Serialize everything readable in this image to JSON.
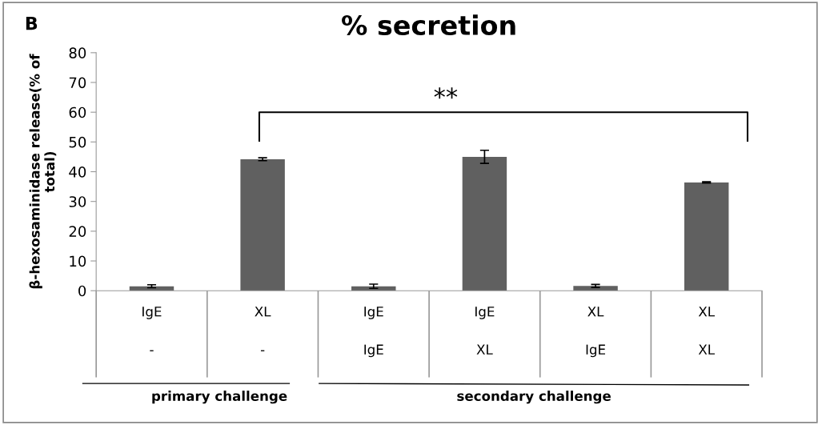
{
  "chart_data": {
    "type": "bar",
    "title": "% secretion",
    "ylabel": "β-hexosaminidase release(% of\ntotal)",
    "categories": [
      "IgE\n\n-",
      "XL\n\n-",
      "IgE\n\nIgE",
      "IgE\n\nXL",
      "XL\n\nIgE",
      "XL\n\nXL"
    ],
    "values": [
      1.5,
      44.2,
      1.5,
      45.0,
      1.6,
      36.4
    ],
    "errors": [
      0.5,
      0.5,
      0.7,
      2.2,
      0.5,
      0.2
    ],
    "color": "#606060",
    "ylim": [
      0,
      80
    ],
    "yticks": [
      0,
      10,
      20,
      30,
      40,
      50,
      60,
      70,
      80
    ],
    "grid": false,
    "annotations": [
      "B",
      "**",
      "primary challenge",
      "secondary challenge"
    ]
  }
}
